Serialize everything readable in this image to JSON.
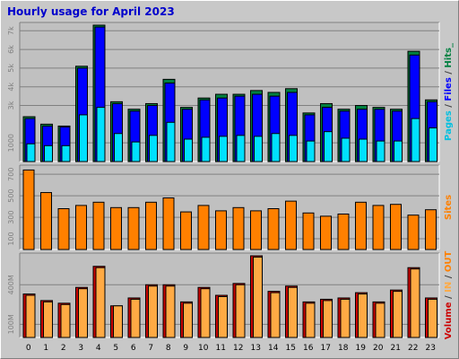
{
  "colors": {
    "frame_bg": "#c8c8c8",
    "panel_bg": "#c0c0c0",
    "title": "#0000cc",
    "pages_bar": "#00e0ff",
    "files_bar": "#0000ff",
    "hits_bar": "#008040",
    "sites_bar": "#ff8000",
    "in_bar": "#ffaa44",
    "out_bar": "#cc0000"
  },
  "chart_data": {
    "type": "bar",
    "title": "Hourly usage for April 2023",
    "categories": [
      "0",
      "1",
      "2",
      "3",
      "4",
      "5",
      "6",
      "7",
      "8",
      "9",
      "10",
      "11",
      "12",
      "13",
      "14",
      "15",
      "16",
      "17",
      "18",
      "19",
      "20",
      "21",
      "22",
      "23"
    ],
    "panels": [
      {
        "name": "hits-panel",
        "ylim": [
          0,
          7300
        ],
        "yticks": [
          "1000",
          "3k",
          "4k",
          "5k",
          "6k",
          "7k"
        ],
        "ytick_values": [
          1000,
          3000,
          4000,
          5000,
          6000,
          7000
        ],
        "series": [
          {
            "name": "Hits",
            "color": "#008040",
            "values": [
              2400,
              2000,
              1900,
              5100,
              7300,
              3200,
              2800,
              3100,
              4400,
              2900,
              3400,
              3600,
              3600,
              3800,
              3700,
              3900,
              2600,
              3100,
              2800,
              3000,
              2900,
              2800,
              5900,
              3300
            ]
          },
          {
            "name": "Files",
            "color": "#0000ff",
            "values": [
              2300,
              1900,
              1850,
              5000,
              7200,
              3100,
              2700,
              3000,
              4200,
              2800,
              3300,
              3400,
              3500,
              3600,
              3500,
              3700,
              2500,
              2900,
              2700,
              2800,
              2800,
              2700,
              5700,
              3200
            ]
          },
          {
            "name": "Pages",
            "color": "#00e0ff",
            "values": [
              950,
              850,
              850,
              2500,
              2900,
              1500,
              1050,
              1400,
              2100,
              1200,
              1300,
              1350,
              1400,
              1350,
              1500,
              1400,
              1100,
              1600,
              1250,
              1200,
              1100,
              1100,
              2300,
              1800
            ]
          }
        ],
        "right_label": [
          {
            "text": "Pages",
            "color": "#00c0e0"
          },
          {
            "text": " / ",
            "color": "#404040"
          },
          {
            "text": "Files",
            "color": "#0000ff"
          },
          {
            "text": " / ",
            "color": "#404040"
          },
          {
            "text": "Hits",
            "color": "#008040"
          },
          {
            "text": "_",
            "color": "#008040"
          }
        ]
      },
      {
        "name": "sites-panel",
        "ylim": [
          0,
          760
        ],
        "yticks": [
          "100",
          "300",
          "500",
          "700"
        ],
        "ytick_values": [
          100,
          300,
          500,
          700
        ],
        "series": [
          {
            "name": "Sites",
            "color": "#ff8000",
            "values": [
              740,
              530,
              380,
              410,
              440,
              390,
              390,
              440,
              480,
              350,
              410,
              360,
              390,
              360,
              380,
              450,
              340,
              310,
              330,
              440,
              410,
              420,
              320,
              370
            ]
          }
        ],
        "right_label": [
          {
            "text": "Sites",
            "color": "#ff8000"
          }
        ]
      },
      {
        "name": "volume-panel",
        "ylim": [
          0,
          620
        ],
        "yticks": [
          "100M",
          "400M"
        ],
        "ytick_values": [
          100,
          400
        ],
        "series": [
          {
            "name": "Volume",
            "color": "#cc0000",
            "values": [
              330,
              280,
              260,
              380,
              540,
              240,
              300,
              400,
              400,
              270,
              380,
              320,
              410,
              620,
              350,
              390,
              270,
              290,
              300,
              340,
              270,
              360,
              530,
              300
            ]
          },
          {
            "name": "IN",
            "color": "#ffaa44",
            "values": [
              320,
              270,
              250,
              370,
              530,
              240,
              290,
              390,
              390,
              260,
              370,
              310,
              400,
              610,
              340,
              380,
              260,
              280,
              290,
              330,
              260,
              350,
              520,
              290
            ]
          }
        ],
        "right_label": [
          {
            "text": "Volume",
            "color": "#cc0000"
          },
          {
            "text": " / ",
            "color": "#404040"
          },
          {
            "text": "IN",
            "color": "#ffaa44"
          },
          {
            "text": " / ",
            "color": "#404040"
          },
          {
            "text": "OUT",
            "color": "#ff8000"
          }
        ]
      }
    ]
  }
}
